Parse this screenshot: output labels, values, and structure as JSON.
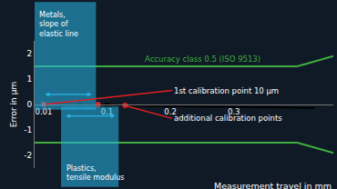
{
  "chart_data": {
    "type": "line",
    "x_label": "Measurement travel in mm",
    "y_label": "Error in µm",
    "grid": false,
    "categories": [
      null,
      "0.01",
      null,
      null,
      null,
      null,
      null,
      null,
      "0.1",
      null,
      null,
      null,
      null,
      null,
      null,
      "0.2",
      null,
      null,
      null,
      null,
      null,
      null,
      "0.3",
      null,
      null,
      null,
      null,
      null,
      null,
      null,
      null,
      null,
      null,
      null
    ],
    "ylim": [
      -2.5,
      2.5
    ],
    "yticks": [
      -2,
      -1,
      0,
      1,
      2
    ],
    "series": [
      {
        "type": "line",
        "color": "#3fae3f",
        "values": [
          1.5,
          1.5,
          1.5,
          1.5,
          1.5,
          1.5,
          1.5,
          1.5,
          1.5,
          1.5,
          1.5,
          1.5,
          1.5,
          1.5,
          1.5,
          1.5,
          1.5,
          1.5,
          1.5,
          1.5,
          1.5,
          1.5,
          1.5,
          1.5,
          1.5,
          1.5,
          1.5,
          1.5,
          1.5,
          1.5,
          1.6,
          1.7,
          1.8,
          1.9
        ]
      },
      {
        "type": "line",
        "color": "#3fae3f",
        "values": [
          -1.5,
          -1.5,
          -1.5,
          -1.5,
          -1.5,
          -1.5,
          -1.5,
          -1.5,
          -1.5,
          -1.5,
          -1.5,
          -1.5,
          -1.5,
          -1.5,
          -1.5,
          -1.5,
          -1.5,
          -1.5,
          -1.5,
          -1.5,
          -1.5,
          -1.5,
          -1.5,
          -1.5,
          -1.5,
          -1.5,
          -1.5,
          -1.5,
          -1.5,
          -1.5,
          -1.6,
          -1.7,
          -1.8,
          -1.9
        ]
      },
      {
        "type": "line",
        "color": "#000000",
        "values": [
          0,
          0,
          0,
          0,
          0,
          0,
          0,
          0,
          -0.02,
          -0.03,
          -0.04,
          -0.05,
          -0.05,
          -0.06,
          -0.06,
          -0.07,
          -0.07,
          -0.08,
          -0.08,
          -0.08,
          -0.09,
          -0.09,
          -0.1,
          -0.1,
          -0.1,
          -0.11,
          -0.11,
          -0.12,
          -0.12,
          -0.12,
          -0.13,
          -0.13,
          null,
          null
        ]
      },
      {
        "type": "scatter",
        "marker": "circle",
        "color": "#000000",
        "values": [
          null,
          null,
          null,
          0,
          null,
          0,
          null,
          null,
          -0.02,
          null,
          null,
          null,
          null,
          null,
          null,
          null,
          null,
          null,
          null,
          null,
          null,
          null,
          null,
          null,
          null,
          null,
          null,
          null,
          null,
          null,
          null,
          null,
          null,
          null
        ]
      },
      {
        "type": "scatter",
        "marker": "circle",
        "color": "#e02020",
        "values": [
          null,
          0,
          null,
          null,
          null,
          null,
          null,
          0,
          null,
          null,
          -0.04,
          null,
          null,
          null,
          null,
          null,
          null,
          null,
          null,
          null,
          null,
          null,
          null,
          null,
          null,
          null,
          null,
          null,
          null,
          null,
          null,
          null,
          null,
          null
        ]
      }
    ],
    "limit_label": {
      "text": "Accuracy class 0.5 (ISO 9513)",
      "color": "#3fae3f"
    },
    "callouts": [
      {
        "text": "1st calibration point 10 µm",
        "color": "#e02020"
      },
      {
        "text": "additional calibration points",
        "color": "#e02020"
      }
    ],
    "regions": [
      {
        "lines": [
          "Metals,",
          "slope of",
          "elastic line"
        ],
        "color": "#29b6e8"
      },
      {
        "lines": [
          "Plastics,",
          "tensile modulus"
        ],
        "color": "#29b6e8"
      }
    ]
  }
}
